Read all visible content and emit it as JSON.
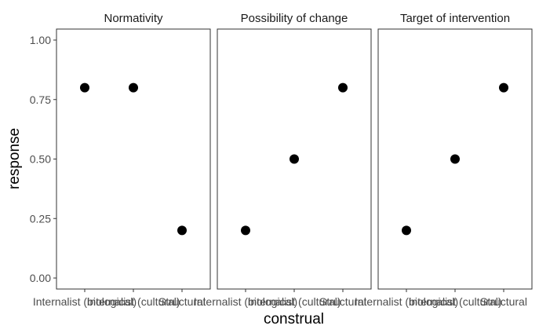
{
  "chart_data": {
    "type": "scatter",
    "xlabel": "construal",
    "ylabel": "response",
    "ylim": [
      0,
      1
    ],
    "y_ticks": [
      "0.00",
      "0.25",
      "0.50",
      "0.75",
      "1.00"
    ],
    "y_tick_values": [
      0,
      0.25,
      0.5,
      0.75,
      1
    ],
    "categories": [
      "Internalist (biological)",
      "Internalist (cultural)",
      "Structural"
    ],
    "grid": false,
    "point_color": "#000000",
    "panels": [
      {
        "title": "Normativity",
        "values": [
          0.8,
          0.8,
          0.2
        ]
      },
      {
        "title": "Possibility of change",
        "values": [
          0.2,
          0.5,
          0.8
        ]
      },
      {
        "title": "Target of intervention",
        "values": [
          0.2,
          0.5,
          0.8
        ]
      }
    ]
  }
}
